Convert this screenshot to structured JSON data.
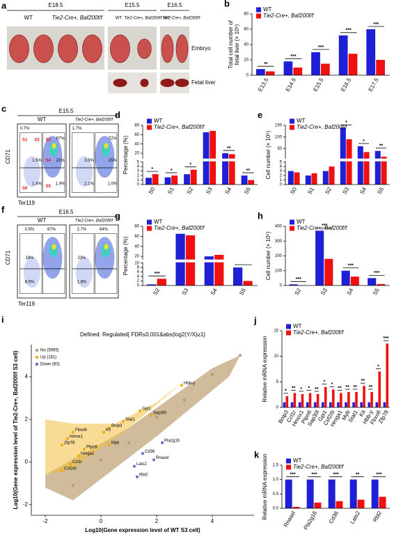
{
  "panel_a": {
    "label": "a",
    "groups": [
      {
        "stage": "E18.5",
        "genotypes": [
          "WT",
          "Tie2-Cre+, Baf200f/f"
        ]
      },
      {
        "stage": "E15.5",
        "genotypes": [
          "WT",
          "Tie2-Cre+, Baf200f/f"
        ]
      },
      {
        "stage": "E16.5",
        "genotypes": [
          "WT",
          "Tie2-Cre+, Baf200f/f"
        ]
      }
    ],
    "row_labels": [
      "Embryo",
      "Fetal liver"
    ]
  },
  "panel_c": {
    "label": "c",
    "stage": "E15.5",
    "xlabel": "Ter119",
    "ylabel": "CD71",
    "gates": [
      "S0",
      "S1",
      "S2",
      "S3",
      "S4",
      "S5"
    ],
    "plots": [
      {
        "genotype": "WT",
        "percentages": [
          "0.7%",
          "1.5%",
          "67%",
          "21%",
          "1.4%",
          "1.9%"
        ]
      },
      {
        "genotype": "Tie2-Cre+, Baf200f/f",
        "percentages": [
          "1.7%",
          "3.0%",
          "72%",
          "15%",
          "2.1%",
          "1.0%"
        ]
      }
    ]
  },
  "panel_f": {
    "label": "f",
    "stage": "E16.5",
    "xlabel": "Ter119",
    "ylabel": "CD71",
    "plots": [
      {
        "genotype": "WT",
        "percentages": [
          "0.5%",
          "67%",
          "18%",
          "8.5%"
        ]
      },
      {
        "genotype": "Tie2-Cre+, Baf200f/f",
        "percentages": [
          "2.7%",
          "64%",
          "23%",
          "1.8%"
        ]
      }
    ]
  },
  "chart_data": [
    {
      "type": "bar",
      "label": "b",
      "ylabel": [
        "Total cell number of",
        "fetal liver (× 10⁶)"
      ],
      "categories": [
        "E13.5",
        "E14.5",
        "E15.5",
        "E16.5",
        "E17.5"
      ],
      "series": [
        {
          "name": "WT",
          "color": "#1f1fd6",
          "values": [
            8,
            18,
            30,
            52,
            60
          ]
        },
        {
          "name": "Tie2-Cre+, Baf200f/f",
          "color": "#f01010",
          "values": [
            5,
            10,
            15,
            28,
            20
          ]
        }
      ],
      "annotations": [
        "**",
        "***",
        "***",
        "***",
        "***"
      ],
      "ylim": [
        0,
        80
      ],
      "yticks": [
        0,
        20,
        40,
        60,
        80
      ]
    },
    {
      "type": "bar",
      "label": "d",
      "ylabel": "Percentage (%)",
      "categories": [
        "S0",
        "S1",
        "S2",
        "S3",
        "S4",
        "S5"
      ],
      "series": [
        {
          "name": "WT",
          "color": "#1f1fd6",
          "values": [
            1.5,
            1.6,
            2.3,
            65,
            20,
            2.0
          ]
        },
        {
          "name": "Tie2-Cre+, Baf200f/f",
          "color": "#f01010",
          "values": [
            2.3,
            2.0,
            3.3,
            68,
            18,
            1.0
          ]
        }
      ],
      "annotations": [
        "*",
        "*",
        "*",
        null,
        "**",
        "**"
      ],
      "ylim": [
        0,
        80
      ],
      "ybreak": [
        5,
        10
      ],
      "yticks": [
        0,
        1,
        2,
        3,
        4,
        5,
        20,
        40,
        60,
        80
      ]
    },
    {
      "type": "bar",
      "label": "e",
      "ylabel": "Cell number (× 10⁵)",
      "categories": [
        "S0",
        "S1",
        "S2",
        "S3",
        "S4",
        "S5"
      ],
      "series": [
        {
          "name": "WT",
          "color": "#1f1fd6",
          "values": [
            3.0,
            2.0,
            3.0,
            140,
            60,
            40
          ]
        },
        {
          "name": "Tie2-Cre+, Baf200f/f",
          "color": "#f01010",
          "values": [
            2.7,
            2.5,
            4.0,
            90,
            35,
            15
          ]
        }
      ],
      "annotations": [
        null,
        null,
        null,
        "*",
        "*",
        "**"
      ],
      "ylim": [
        0,
        150
      ],
      "ybreak": [
        5,
        10
      ],
      "yticks": [
        0,
        1,
        2,
        3,
        4,
        5,
        50,
        100,
        150
      ]
    },
    {
      "type": "bar",
      "label": "g",
      "ylabel": "Percentage (%)",
      "categories": [
        "S2",
        "S3",
        "S4",
        "S5"
      ],
      "series": [
        {
          "name": "WT",
          "color": "#1f1fd6",
          "values": [
            0.5,
            65,
            20,
            8
          ]
        },
        {
          "name": "Tie2-Cre+, Baf200f/f",
          "color": "#f01010",
          "values": [
            3,
            62,
            23,
            2
          ]
        }
      ],
      "annotations": [
        "***",
        null,
        null,
        "***"
      ],
      "ylim": [
        0,
        80
      ],
      "ybreak": [
        10,
        15
      ],
      "yticks": [
        0,
        2,
        4,
        6,
        8,
        10,
        20,
        40,
        60,
        80
      ]
    },
    {
      "type": "bar",
      "label": "h",
      "ylabel": "Cell number (× 10⁵)",
      "categories": [
        "S2",
        "S3",
        "S4",
        "S5"
      ],
      "series": [
        {
          "name": "WT",
          "color": "#1f1fd6",
          "values": [
            8,
            370,
            100,
            50
          ]
        },
        {
          "name": "Tie2-Cre+, Baf200f/f",
          "color": "#f01010",
          "values": [
            2,
            180,
            60,
            10
          ]
        }
      ],
      "annotations": [
        "***",
        "***",
        "***",
        "***"
      ],
      "ylim": [
        0,
        400
      ],
      "yticks": [
        0,
        100,
        200,
        300,
        400
      ]
    },
    {
      "type": "scatter",
      "label": "i",
      "title": "Defined: Regulated{ FDR≤0.001&abs(log2(Y/X)≥1}",
      "xlabel": "Log10(Gene expression level of WT S3 cell)",
      "ylabel": "Log10(Gene expression level of Tie2-Cre+, Baf200f/f S3 cell)",
      "xlim": [
        -2.5,
        5.5
      ],
      "xticks": [
        -2,
        0,
        2,
        4
      ],
      "ylim": [
        -2.5,
        5.5
      ],
      "yticks": [
        -2,
        0,
        2,
        4
      ],
      "series": [
        {
          "name": "No (5965)",
          "color": "#b09a78",
          "x": [
            -1,
            0,
            1,
            2,
            3,
            4,
            5
          ],
          "values": [
            -1.1,
            0.1,
            0.9,
            2.1,
            2.9,
            4.1,
            5
          ]
        },
        {
          "name": "Up (181)",
          "color": "#f2a900",
          "x": [
            0.3,
            -1.1,
            -1.2,
            -0.6,
            1.8,
            1.4,
            -1.4,
            -0.8,
            0.3,
            0.8,
            0.1,
            2.9,
            -1.0,
            -1.4
          ],
          "values": [
            1.6,
            -0.1,
            1.1,
            0.6,
            2.2,
            2.4,
            -0.4,
            0.3,
            0.8,
            1.9,
            1.4,
            3.6,
            1.4,
            0.8
          ],
          "labels": [
            "Bnip3",
            "Ccl1r",
            "Hmox1",
            "Ptpn6",
            "Sap30l",
            "Gpi1",
            "Csf2rb",
            "Hmga1",
            "Myb",
            "Stat1",
            "Kit",
            "Hbb-y",
            "Fbxo6",
            "Zfp78"
          ]
        },
        {
          "name": "Down (60)",
          "color": "#5b6fd0",
          "x": [
            1.9,
            2.2,
            1.5,
            1.2,
            1.3
          ],
          "values": [
            0.1,
            0.9,
            0.4,
            -0.2,
            -0.7
          ],
          "labels": [
            "Rnasel",
            "Pla2g16",
            "Cd36",
            "Lats2",
            "Rbl2"
          ]
        }
      ]
    },
    {
      "type": "bar",
      "label": "j",
      "ylabel": "Relative mRNA expression",
      "categories": [
        "Bnip3",
        "Ccl1r",
        "Hmox1",
        "Ptpn6",
        "Sap30l",
        "Gpi1",
        "Csf2rb",
        "Hmga1",
        "Myb",
        "Stat1",
        "Kit",
        "Hbb-y",
        "Fbxo6",
        "Zfp78"
      ],
      "series": [
        {
          "name": "WT",
          "color": "#1f1fd6",
          "values": [
            1,
            1,
            1,
            1,
            1,
            1,
            1,
            1,
            1,
            1,
            1,
            1,
            1,
            1
          ]
        },
        {
          "name": "Tie2-Cre+, Baf200f/f",
          "color": "#f01010",
          "values": [
            2.2,
            2.8,
            2.6,
            2.8,
            2.6,
            4,
            3.5,
            2.8,
            3,
            3,
            4.2,
            3,
            7,
            12.5
          ]
        }
      ],
      "annotations": [
        "*",
        "**",
        "*",
        "*",
        "**",
        "*",
        "*",
        "**",
        "**",
        "**",
        "**",
        "**",
        "*",
        "***"
      ],
      "ylim": [
        0,
        15
      ],
      "yticks": [
        0,
        5,
        10,
        15
      ]
    },
    {
      "type": "bar",
      "label": "k",
      "ylabel": "Relative mRNA expression",
      "categories": [
        "Rnasel",
        "Pla2g16",
        "Cd36",
        "Lats2",
        "Rbl2"
      ],
      "series": [
        {
          "name": "WT",
          "color": "#1f1fd6",
          "values": [
            1,
            1,
            1,
            1,
            1
          ]
        },
        {
          "name": "Tie2-Cre+, Baf200f/f",
          "color": "#f01010",
          "values": [
            0.05,
            0.2,
            0.25,
            0.3,
            0.4
          ]
        }
      ],
      "annotations": [
        "***",
        "***",
        "***",
        "**",
        "***"
      ],
      "ylim": [
        0,
        1.5
      ],
      "yticks": [
        {
          "value": 0,
          "label": "0.0"
        },
        0.5,
        {
          "value": 1,
          "label": "1.0"
        },
        1.5
      ]
    }
  ]
}
